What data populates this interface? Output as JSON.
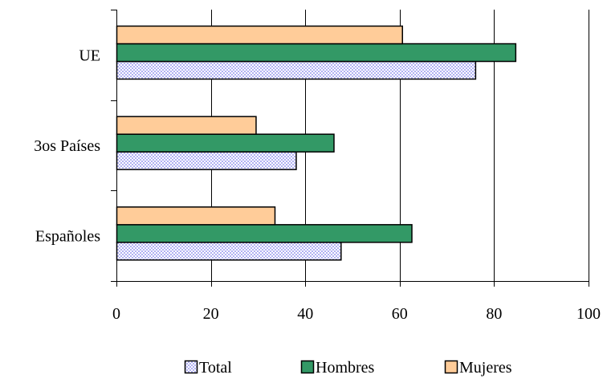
{
  "chart_data": {
    "type": "bar",
    "orientation": "horizontal",
    "title": "",
    "xlabel": "",
    "ylabel": "",
    "categories": [
      "UE",
      "3os Países",
      "Españoles"
    ],
    "series": [
      {
        "name": "Total",
        "color": "#ccccff",
        "pattern": "dotted",
        "values": [
          76,
          38,
          47.5
        ]
      },
      {
        "name": "Hombres",
        "color": "#339966",
        "values": [
          84.5,
          46,
          62.5
        ]
      },
      {
        "name": "Mujeres",
        "color": "#ffcc99",
        "values": [
          60.5,
          29.5,
          33.5
        ]
      }
    ],
    "xlim": [
      0,
      100
    ],
    "xticks": [
      0,
      20,
      40,
      60,
      80,
      100
    ],
    "xtick_labels": [
      "0",
      "20",
      "40",
      "60",
      "80",
      "100"
    ],
    "grid": "vertical",
    "legend_position": "bottom"
  }
}
